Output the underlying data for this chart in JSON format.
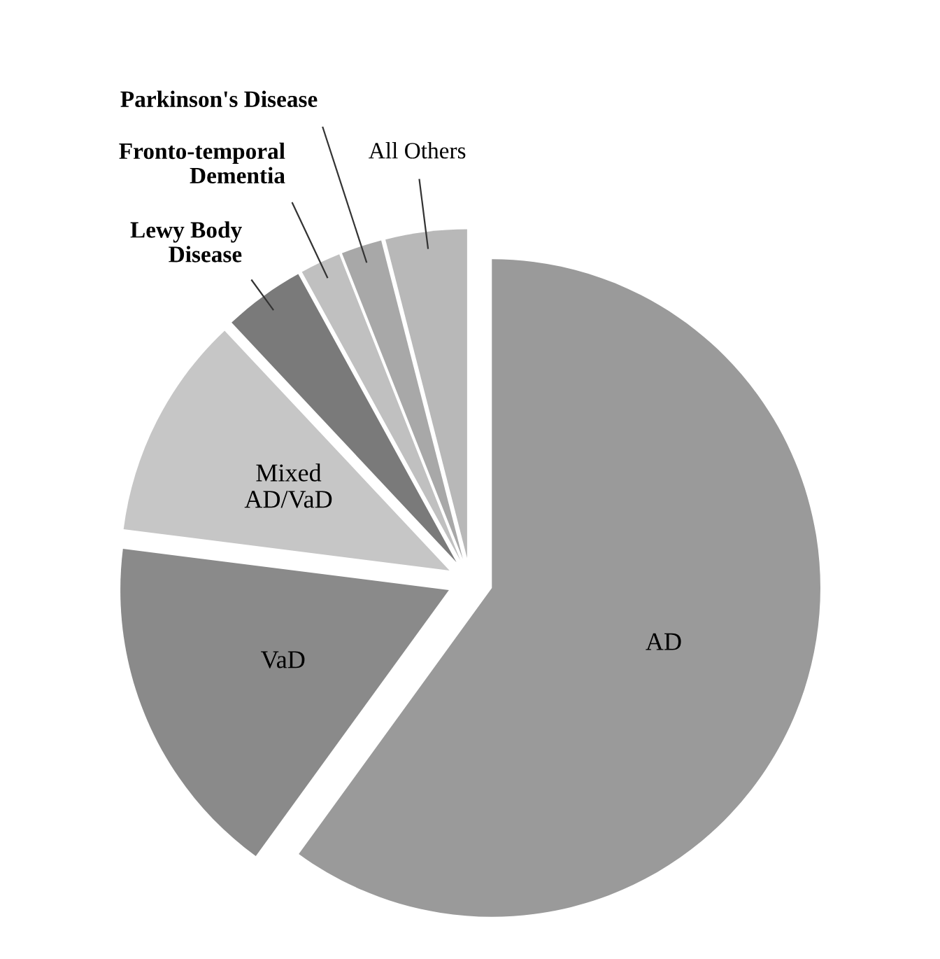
{
  "chart_data": {
    "type": "pie",
    "categories": [
      "AD",
      "VaD",
      "Mixed\nAD/VaD",
      "Lewy Body\nDisease",
      "Fronto-temporal\nDementia",
      "Parkinson's Disease",
      "All Others"
    ],
    "values": [
      60,
      17,
      11,
      4,
      2,
      2,
      4
    ],
    "colors": [
      "#9a9a9a",
      "#8a8a8a",
      "#c6c6c6",
      "#7a7a7a",
      "#c0c0c0",
      "#a8a8a8",
      "#b8b8b8"
    ],
    "legend": false
  }
}
